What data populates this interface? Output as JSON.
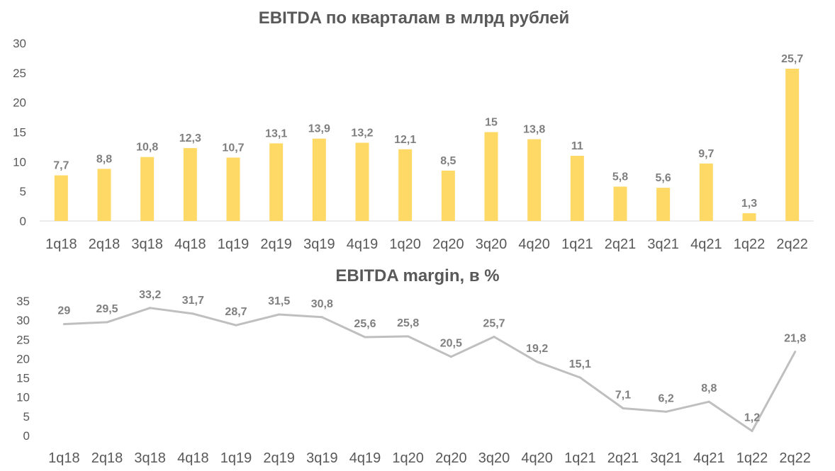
{
  "chart_data": [
    {
      "type": "bar",
      "title": "EBITDA по кварталам в млрд рублей",
      "categories": [
        "1q18",
        "2q18",
        "3q18",
        "4q18",
        "1q19",
        "2q19",
        "3q19",
        "4q19",
        "1q20",
        "2q20",
        "3q20",
        "4q20",
        "1q21",
        "2q21",
        "3q21",
        "4q21",
        "1q22",
        "2q22"
      ],
      "values": [
        7.7,
        8.8,
        10.8,
        12.3,
        10.7,
        13.1,
        13.9,
        13.2,
        12.1,
        8.5,
        15,
        13.8,
        11,
        5.8,
        5.6,
        9.7,
        1.3,
        25.7
      ],
      "data_labels": [
        "7,7",
        "8,8",
        "10,8",
        "12,3",
        "10,7",
        "13,1",
        "13,9",
        "13,2",
        "12,1",
        "8,5",
        "15",
        "13,8",
        "11",
        "5,8",
        "5,6",
        "9,7",
        "1,3",
        "25,7"
      ],
      "ylim": [
        0,
        30
      ],
      "yticks": [
        "0",
        "5",
        "10",
        "15",
        "20",
        "25",
        "30"
      ],
      "grid": false,
      "color": "#FFD966"
    },
    {
      "type": "line",
      "title": "EBITDA margin, в %",
      "categories": [
        "1q18",
        "2q18",
        "3q18",
        "4q18",
        "1q19",
        "2q19",
        "3q19",
        "4q19",
        "1q20",
        "2q20",
        "3q20",
        "4q20",
        "1q21",
        "2q21",
        "3q21",
        "4q21",
        "1q22",
        "2q22"
      ],
      "values": [
        29,
        29.5,
        33.2,
        31.7,
        28.7,
        31.5,
        30.8,
        25.6,
        25.8,
        20.5,
        25.7,
        19.2,
        15.1,
        7.1,
        6.2,
        8.8,
        1.2,
        21.8
      ],
      "data_labels": [
        "29",
        "29,5",
        "33,2",
        "31,7",
        "28,7",
        "31,5",
        "30,8",
        "25,6",
        "25,8",
        "20,5",
        "25,7",
        "19,2",
        "15,1",
        "7,1",
        "6,2",
        "8,8",
        "1,2",
        "21,8"
      ],
      "ylim": [
        0,
        35
      ],
      "yticks": [
        "0",
        "5",
        "10",
        "15",
        "20",
        "25",
        "30",
        "35"
      ],
      "grid": false,
      "color": "#BFBFBF"
    }
  ]
}
